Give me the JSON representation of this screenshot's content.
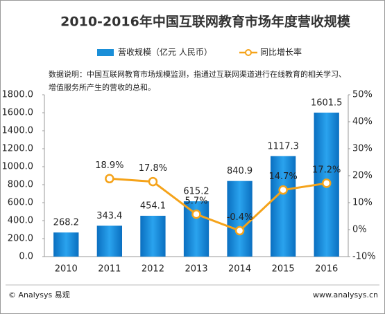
{
  "chart_data": {
    "type": "bar-line",
    "title": "2010-2016年中国互联网教育市场年度营收规模",
    "note": [
      "数据说明：中国互联网教育市场规模监测，指通过互联网渠道进行在线教育的相关学习、",
      "增值服务所产生的营收的总和。"
    ],
    "categories": [
      "2010",
      "2011",
      "2012",
      "2013",
      "2014",
      "2015",
      "2016"
    ],
    "series": [
      {
        "name": "营收规模（亿元 人民币）",
        "type": "bar",
        "color": "#1a8fd8",
        "values": [
          268.2,
          343.4,
          454.1,
          615.2,
          840.9,
          1117.3,
          1601.5
        ]
      },
      {
        "name": "同比增长率",
        "type": "line",
        "axis": "y2",
        "color": "#f5a31a",
        "values": [
          null,
          18.9,
          17.8,
          5.7,
          -0.4,
          14.7,
          17.2
        ],
        "value_labels": [
          null,
          "18.9%",
          "17.8%",
          "5.7%",
          "-0.4%",
          "14.7%",
          "17.2%"
        ]
      }
    ],
    "ylim": [
      0,
      1800
    ],
    "yticks": [
      {
        "value": 0,
        "label": "0.0"
      },
      {
        "value": 200,
        "label": "200.0"
      },
      {
        "value": 400,
        "label": "400.0"
      },
      {
        "value": 600,
        "label": "600.0"
      },
      {
        "value": 800,
        "label": "800.0"
      },
      {
        "value": 1000,
        "label": "1000.0"
      },
      {
        "value": 1200,
        "label": "1200.0"
      },
      {
        "value": 1400,
        "label": "1400.0"
      },
      {
        "value": 1600,
        "label": "1600.0"
      },
      {
        "value": 1800,
        "label": "1800.0"
      }
    ],
    "y2lim": [
      -10,
      50
    ],
    "y2ticks": [
      {
        "value": -10,
        "label": "-10%"
      },
      {
        "value": 0,
        "label": "0%"
      },
      {
        "value": 10,
        "label": "10%"
      },
      {
        "value": 20,
        "label": "20%"
      },
      {
        "value": 30,
        "label": "30%"
      },
      {
        "value": 40,
        "label": "40%"
      },
      {
        "value": 50,
        "label": "50%"
      }
    ],
    "grid": false
  },
  "footer": {
    "left": "© Analysys 易观",
    "right": "www.analysys.cn"
  }
}
